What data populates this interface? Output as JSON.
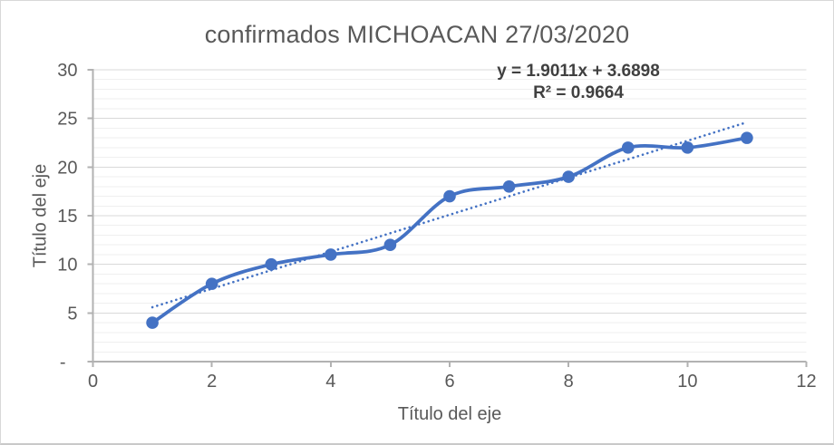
{
  "chart": {
    "title": "confirmados MICHOACAN 27/03/2020",
    "x_axis_title": "Título del eje",
    "y_axis_title": "Título del eje",
    "trendline_label": {
      "equation": "y = 1.9011x + 3.6898",
      "r_squared": "R² = 0.9664"
    },
    "colors": {
      "series": "#4472C4",
      "trendline": "#4472C4",
      "grid_major": "#D9D9D9",
      "grid_minor": "#EFEFEF",
      "axis_line": "#B2B2B2",
      "tick_text": "#595959",
      "title_text": "#595959",
      "label_text": "#404040",
      "background": "#FFFFFF"
    }
  },
  "chart_data": {
    "type": "line",
    "title": "confirmados MICHOACAN 27/03/2020",
    "xlabel": "Título del eje",
    "ylabel": "Título del eje",
    "x": [
      1,
      2,
      3,
      4,
      5,
      6,
      7,
      8,
      9,
      10,
      11
    ],
    "series": [
      {
        "name": "confirmados",
        "values": [
          4,
          8,
          10,
          11,
          12,
          17,
          18,
          19,
          22,
          22,
          23
        ]
      }
    ],
    "line_smooth": true,
    "marker": "circle",
    "legend": "none",
    "grid": "horizontal major and minor",
    "xlim": [
      0,
      12
    ],
    "ylim": [
      0,
      30
    ],
    "x_tick_values": [
      0,
      2,
      4,
      6,
      8,
      10,
      12
    ],
    "x_tick_labels": [
      "0",
      "2",
      "4",
      "6",
      "8",
      "10",
      "12"
    ],
    "y_tick_values": [
      0,
      5,
      10,
      15,
      20,
      25,
      30
    ],
    "y_tick_labels": [
      "-",
      "5",
      "10",
      "15",
      "20",
      "25",
      "30"
    ],
    "y_major_unit": 5,
    "y_minor_unit": 1,
    "trendline": {
      "type": "linear",
      "slope": 1.9011,
      "intercept": 3.6898,
      "r2": 0.9664,
      "equation": "y = 1.9011x + 3.6898",
      "r2_label": "R² = 0.9664",
      "x_range": [
        1,
        11
      ],
      "style": "dotted"
    }
  }
}
